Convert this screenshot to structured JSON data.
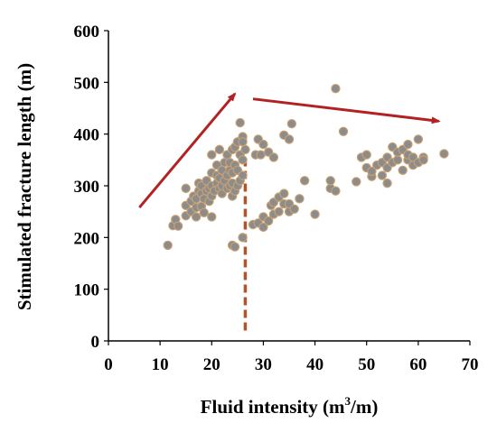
{
  "chart_data": {
    "type": "scatter",
    "title": "",
    "xlabel_main": "Fluid intensity (m",
    "xlabel_sup": "3",
    "xlabel_tail": "/m)",
    "ylabel": "Stimulated fracture length (m)",
    "xlim": [
      0,
      70
    ],
    "ylim": [
      0,
      600
    ],
    "xticks": [
      "0",
      "10",
      "20",
      "30",
      "40",
      "50",
      "60",
      "70"
    ],
    "yticks": [
      "0",
      "100",
      "200",
      "300",
      "400",
      "500",
      "600"
    ],
    "grid": false,
    "legend": "none",
    "colors": {
      "point_fill": "#8c8c8c",
      "point_edge": "#c8a070",
      "arrow": "#b22222",
      "dashed_line": "#b5522a"
    },
    "annotations": {
      "vertical_dashed_line": {
        "x": 26.5,
        "y_from": 20,
        "y_to": 395
      },
      "arrows": [
        {
          "from": [
            6,
            258
          ],
          "to": [
            24.5,
            478
          ]
        },
        {
          "from": [
            28,
            468
          ],
          "to": [
            64,
            425
          ]
        }
      ]
    },
    "series": [
      {
        "points": [
          [
            11.5,
            185
          ],
          [
            12.5,
            223
          ],
          [
            13,
            235
          ],
          [
            13.5,
            222
          ],
          [
            15,
            242
          ],
          [
            15,
            262
          ],
          [
            15,
            295
          ],
          [
            16,
            250
          ],
          [
            16,
            270
          ],
          [
            16.5,
            280
          ],
          [
            17,
            240
          ],
          [
            17,
            258
          ],
          [
            17,
            275
          ],
          [
            17.5,
            290
          ],
          [
            17.5,
            305
          ],
          [
            18,
            260
          ],
          [
            18,
            285
          ],
          [
            18,
            300
          ],
          [
            18.5,
            248
          ],
          [
            18.5,
            275
          ],
          [
            19,
            290
          ],
          [
            19,
            310
          ],
          [
            19.5,
            270
          ],
          [
            19.5,
            295
          ],
          [
            20,
            240
          ],
          [
            20,
            280
          ],
          [
            20,
            300
          ],
          [
            20,
            325
          ],
          [
            20,
            360
          ],
          [
            20.5,
            290
          ],
          [
            21,
            305
          ],
          [
            21,
            320
          ],
          [
            21,
            340
          ],
          [
            21.5,
            295
          ],
          [
            21.5,
            315
          ],
          [
            21.5,
            370
          ],
          [
            22,
            285
          ],
          [
            22,
            300
          ],
          [
            22,
            330
          ],
          [
            22.5,
            310
          ],
          [
            22.5,
            345
          ],
          [
            23,
            295
          ],
          [
            23,
            320
          ],
          [
            23,
            360
          ],
          [
            23.5,
            300
          ],
          [
            23.5,
            330
          ],
          [
            23.5,
            345
          ],
          [
            24,
            280
          ],
          [
            24,
            305
          ],
          [
            24,
            325
          ],
          [
            24,
            370
          ],
          [
            24.5,
            290
          ],
          [
            24.5,
            340
          ],
          [
            24.5,
            375
          ],
          [
            25,
            300
          ],
          [
            25,
            330
          ],
          [
            25,
            385
          ],
          [
            25.5,
            310
          ],
          [
            25.5,
            360
          ],
          [
            26,
            320
          ],
          [
            26,
            350
          ],
          [
            26,
            395
          ],
          [
            26,
            385
          ],
          [
            25.5,
            422
          ],
          [
            24,
            185
          ],
          [
            24.5,
            182
          ],
          [
            26,
            200
          ],
          [
            26.5,
            370
          ],
          [
            28,
            225
          ],
          [
            28.5,
            360
          ],
          [
            29,
            228
          ],
          [
            29,
            390
          ],
          [
            29.5,
            360
          ],
          [
            30,
            220
          ],
          [
            30,
            240
          ],
          [
            30,
            380
          ],
          [
            31,
            232
          ],
          [
            31,
            365
          ],
          [
            31.5,
            262
          ],
          [
            32,
            245
          ],
          [
            32,
            268
          ],
          [
            32,
            355
          ],
          [
            33,
            250
          ],
          [
            33,
            278
          ],
          [
            34,
            265
          ],
          [
            34,
            285
          ],
          [
            34,
            398
          ],
          [
            35,
            250
          ],
          [
            35,
            265
          ],
          [
            35,
            390
          ],
          [
            35.5,
            420
          ],
          [
            36,
            255
          ],
          [
            37,
            275
          ],
          [
            38,
            310
          ],
          [
            40,
            245
          ],
          [
            43,
            295
          ],
          [
            43,
            310
          ],
          [
            44,
            290
          ],
          [
            44,
            488
          ],
          [
            45.5,
            405
          ],
          [
            48,
            308
          ],
          [
            49,
            355
          ],
          [
            50,
            335
          ],
          [
            50,
            360
          ],
          [
            51,
            318
          ],
          [
            51,
            328
          ],
          [
            52,
            340
          ],
          [
            53,
            320
          ],
          [
            53,
            345
          ],
          [
            54,
            305
          ],
          [
            54,
            335
          ],
          [
            54,
            355
          ],
          [
            55,
            345
          ],
          [
            55,
            375
          ],
          [
            56,
            350
          ],
          [
            56,
            365
          ],
          [
            57,
            330
          ],
          [
            57,
            370
          ],
          [
            58,
            350
          ],
          [
            58,
            360
          ],
          [
            58,
            380
          ],
          [
            59,
            340
          ],
          [
            59,
            355
          ],
          [
            60,
            345
          ],
          [
            60,
            390
          ],
          [
            61,
            355
          ],
          [
            65,
            362
          ],
          [
            61,
            350
          ]
        ]
      }
    ]
  }
}
